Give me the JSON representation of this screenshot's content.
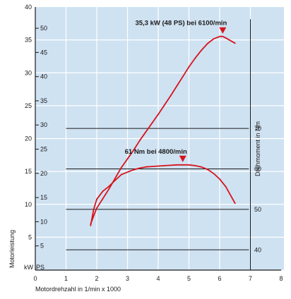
{
  "chart_data": {
    "type": "line",
    "title": "",
    "xlabel": "Motordrehzahl in 1/min x 1000",
    "xlim": [
      0,
      8
    ],
    "x_ticks": [
      "0",
      "1",
      "2",
      "3",
      "4",
      "5",
      "6",
      "7",
      "8"
    ],
    "left_axes": {
      "label": "Motorleistung",
      "kw_unit": "kW",
      "ps_unit": "PS",
      "kw_range": [
        0,
        40
      ],
      "kw_ticks": [
        "5",
        "10",
        "15",
        "20",
        "25",
        "30",
        "35",
        "40"
      ],
      "ps_ticks": [
        "5",
        "10",
        "15",
        "20",
        "25",
        "30",
        "35",
        "40",
        "45",
        "50"
      ]
    },
    "right_axis": {
      "label": "Drehmoment in Nm",
      "range": [
        35,
        100
      ],
      "ticks": [
        "40",
        "50",
        "60",
        "70"
      ]
    },
    "series": [
      {
        "axis": "power_kw",
        "x": [
          1.8,
          1.9,
          2.0,
          2.2,
          2.4,
          2.6,
          2.8,
          3.0,
          3.2,
          3.4,
          3.6,
          3.8,
          4.0,
          4.2,
          4.4,
          4.6,
          4.8,
          5.0,
          5.2,
          5.4,
          5.6,
          5.8,
          6.0,
          6.1,
          6.2,
          6.5
        ],
        "values": [
          9.5,
          11.2,
          12.8,
          14.8,
          16.8,
          19.0,
          21.2,
          23.0,
          24.8,
          26.8,
          28.6,
          30.4,
          32.2,
          34.1,
          36.0,
          38.0,
          40.0,
          42.0,
          43.8,
          45.4,
          46.8,
          47.8,
          48.3,
          48.3,
          48.0,
          46.9
        ],
        "color": "#d6141c"
      },
      {
        "axis": "torque_nm",
        "x": [
          1.8,
          1.9,
          2.0,
          2.2,
          2.4,
          2.6,
          2.8,
          3.0,
          3.2,
          3.4,
          3.6,
          3.8,
          4.0,
          4.2,
          4.4,
          4.6,
          4.8,
          5.0,
          5.2,
          5.4,
          5.6,
          5.8,
          6.0,
          6.2,
          6.5
        ],
        "values": [
          46,
          50,
          52.5,
          54.5,
          55.7,
          57.2,
          58.6,
          59.2,
          59.8,
          60.2,
          60.5,
          60.6,
          60.7,
          60.8,
          60.9,
          61.0,
          61.0,
          61.0,
          60.8,
          60.5,
          59.9,
          58.9,
          57.5,
          55.6,
          51.5
        ],
        "color": "#d6141c"
      }
    ],
    "torque_grid": [
      40,
      50,
      60,
      70
    ],
    "annotations": [
      {
        "text": "35,3 kW (48 PS) bei 6100/min",
        "x": 6.1,
        "series": 0
      },
      {
        "text": "61 Nm bei 4800/min",
        "x": 4.8,
        "series": 1
      }
    ],
    "colors": {
      "background": "#cfe2f2",
      "grid": "#ffffff",
      "curve": "#d6141c",
      "marker": "#d6141c",
      "torque_lines": "#1a1a1a"
    }
  }
}
